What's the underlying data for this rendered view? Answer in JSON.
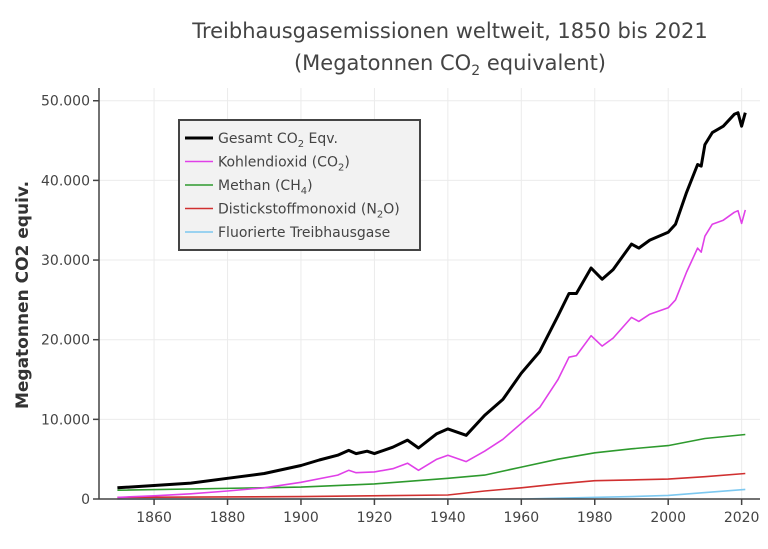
{
  "chart_data": {
    "type": "line",
    "title_line1": "Treibhausgasemissionen weltweit, 1850 bis 2021",
    "title_line2_pre": "(Megatonnen CO",
    "title_line2_sub": "2",
    "title_line2_post": " equivalent)",
    "xlabel": "",
    "ylabel": "Megatonnen CO2 equiv.",
    "xlim": [
      1845,
      2025
    ],
    "ylim": [
      0,
      51600
    ],
    "xticks": [
      1860,
      1880,
      1900,
      1920,
      1940,
      1960,
      1980,
      2000,
      2020
    ],
    "yticks": [
      0,
      10000,
      20000,
      30000,
      40000,
      50000
    ],
    "ytick_labels": [
      "0",
      "10.000",
      "20.000",
      "30.000",
      "40.000",
      "50.000"
    ],
    "grid": true,
    "legend_placement": "top-left",
    "series": [
      {
        "name": "Gesamt CO2 Eqv.",
        "legend": {
          "pre": "Gesamt CO",
          "sub": "2",
          "post": " Eqv."
        },
        "color": "#000000",
        "width": 3,
        "x": [
          1850,
          1860,
          1870,
          1880,
          1890,
          1900,
          1905,
          1910,
          1913,
          1915,
          1918,
          1920,
          1925,
          1929,
          1932,
          1937,
          1940,
          1945,
          1950,
          1955,
          1960,
          1965,
          1970,
          1973,
          1975,
          1979,
          1982,
          1985,
          1990,
          1992,
          1995,
          2000,
          2002,
          2005,
          2008,
          2009,
          2010,
          2012,
          2015,
          2018,
          2019,
          2020,
          2021
        ],
        "y": [
          1400,
          1700,
          2000,
          2600,
          3200,
          4200,
          4900,
          5500,
          6100,
          5700,
          6000,
          5700,
          6500,
          7400,
          6400,
          8200,
          8800,
          8000,
          10500,
          12500,
          15800,
          18500,
          23000,
          25800,
          25800,
          29000,
          27600,
          28800,
          32000,
          31500,
          32500,
          33500,
          34500,
          38500,
          42000,
          41800,
          44500,
          46000,
          46800,
          48300,
          48500,
          46800,
          48500
        ]
      },
      {
        "name": "Kohlendioxid (CO2)",
        "legend": {
          "pre": "Kohlendioxid (CO",
          "sub": "2",
          "post": ")"
        },
        "color": "#e040e8",
        "width": 1.6,
        "x": [
          1850,
          1860,
          1870,
          1880,
          1890,
          1900,
          1910,
          1913,
          1915,
          1920,
          1925,
          1929,
          1932,
          1937,
          1940,
          1945,
          1950,
          1955,
          1960,
          1965,
          1970,
          1973,
          1975,
          1979,
          1982,
          1985,
          1990,
          1992,
          1995,
          2000,
          2002,
          2005,
          2008,
          2009,
          2010,
          2012,
          2015,
          2018,
          2019,
          2020,
          2021
        ],
        "y": [
          200,
          400,
          650,
          1000,
          1400,
          2100,
          3000,
          3600,
          3300,
          3400,
          3800,
          4500,
          3600,
          5000,
          5500,
          4700,
          6000,
          7500,
          9500,
          11500,
          15000,
          17800,
          18000,
          20500,
          19200,
          20200,
          22800,
          22300,
          23200,
          24000,
          25000,
          28500,
          31500,
          31000,
          33000,
          34500,
          35000,
          36000,
          36200,
          34600,
          36300
        ]
      },
      {
        "name": "Methan (CH4)",
        "legend": {
          "pre": "Methan (CH",
          "sub": "4",
          "post": ")"
        },
        "color": "#2e9a2e",
        "width": 1.6,
        "x": [
          1850,
          1900,
          1920,
          1940,
          1950,
          1960,
          1970,
          1980,
          1990,
          2000,
          2010,
          2021
        ],
        "y": [
          1100,
          1500,
          1900,
          2600,
          3000,
          4000,
          5000,
          5800,
          6300,
          6700,
          7600,
          8100
        ]
      },
      {
        "name": "Distickstoffmonoxid (N2O)",
        "legend": {
          "pre": "Distickstoffmonoxid (N",
          "sub": "2",
          "post": "O)"
        },
        "color": "#d03030",
        "width": 1.6,
        "x": [
          1850,
          1900,
          1940,
          1950,
          1960,
          1970,
          1980,
          1990,
          2000,
          2010,
          2021
        ],
        "y": [
          200,
          300,
          500,
          1000,
          1400,
          1900,
          2300,
          2400,
          2500,
          2800,
          3200
        ]
      },
      {
        "name": "Fluorierte Treibhausgase",
        "legend": {
          "pre": "Fluorierte Treibhausgase",
          "sub": "",
          "post": ""
        },
        "color": "#7cc8f0",
        "width": 1.6,
        "x": [
          1850,
          1960,
          1970,
          1990,
          2000,
          2010,
          2021
        ],
        "y": [
          0,
          0,
          100,
          300,
          450,
          800,
          1200
        ]
      }
    ]
  }
}
